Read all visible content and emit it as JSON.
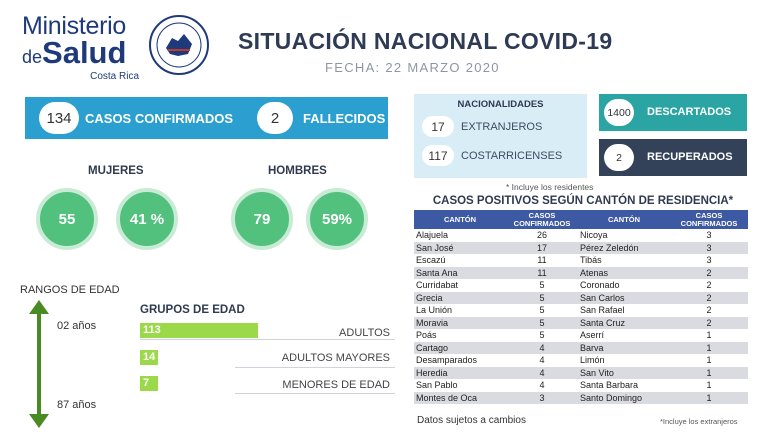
{
  "header": {
    "logo": {
      "line1": "Ministerio",
      "de": "de",
      "salud": "Salud",
      "country": "Costa Rica"
    },
    "title": "SITUACIÓN NACIONAL COVID-19",
    "date": "FECHA: 22  MARZO 2020"
  },
  "summary": {
    "confirmed_value": "134",
    "confirmed_label": "CASOS CONFIRMADOS",
    "deaths_value": "2",
    "deaths_label": "FALLECIDOS"
  },
  "gender": {
    "women_label": "MUJERES",
    "women_count": "55",
    "women_percent": "41  %",
    "men_label": "HOMBRES",
    "men_count": "79",
    "men_percent": "59%"
  },
  "age": {
    "ranges_label": "RANGOS DE EDAD",
    "min_label": "02 años",
    "max_label": "87 años",
    "groups_title": "GRUPOS DE EDAD",
    "groups": [
      {
        "value": "113",
        "label": "ADULTOS",
        "share": 0.843
      },
      {
        "value": "14",
        "label": "ADULTOS MAYORES",
        "share": 0.104
      },
      {
        "value": "7",
        "label": "MENORES DE EDAD",
        "share": 0.052
      }
    ]
  },
  "nationalities": {
    "title": "NACIONALIDADES",
    "foreign_value": "17",
    "foreign_label": "EXTRANJEROS",
    "national_value": "117",
    "national_label": "COSTARRICENSES",
    "note": "* Incluye los residentes"
  },
  "status": {
    "discarded_value": "1400",
    "discarded_label": "DESCARTADOS",
    "recovered_value": "2",
    "recovered_label": "RECUPERADOS"
  },
  "table": {
    "title": "CASOS POSITIVOS SEGÚN CANTÓN DE RESIDENCIA*",
    "headers": [
      "CANTÓN",
      "CASOS CONFIRMADOS",
      "CANTÓN",
      "CASOS CONFIRMADOS"
    ],
    "rows": [
      [
        "Alajuela",
        "26",
        "Nicoya",
        "3"
      ],
      [
        "San José",
        "17",
        "Pérez Zeledón",
        "3"
      ],
      [
        "Escazú",
        "11",
        "Tibás",
        "3"
      ],
      [
        "Santa Ana",
        "11",
        "Atenas",
        "2"
      ],
      [
        "Curridabat",
        "5",
        "Coronado",
        "2"
      ],
      [
        "Grecia",
        "5",
        "San Carlos",
        "2"
      ],
      [
        "La Unión",
        "5",
        "San Rafael",
        "2"
      ],
      [
        "Moravia",
        "5",
        "Santa Cruz",
        "2"
      ],
      [
        "Poás",
        "5",
        "Aserrí",
        "1"
      ],
      [
        "Cartago",
        "4",
        "Barva",
        "1"
      ],
      [
        "Desamparados",
        "4",
        "Limón",
        "1"
      ],
      [
        "Heredia",
        "4",
        "San Vito",
        "1"
      ],
      [
        "San Pablo",
        "4",
        "Santa Barbara",
        "1"
      ],
      [
        "Montes de Oca",
        "3",
        "Santo Domingo",
        "1"
      ]
    ]
  },
  "footer": {
    "left": "Datos sujetos a cambios",
    "right": "*Incluye los extranjeros"
  },
  "colors": {
    "blue_bar": "#2a9fd0",
    "green_circle": "#52c17d",
    "lime_bar": "#9bd84a",
    "teal": "#2ba5a4",
    "navy": "#334159",
    "table_header": "#3e59a4"
  }
}
